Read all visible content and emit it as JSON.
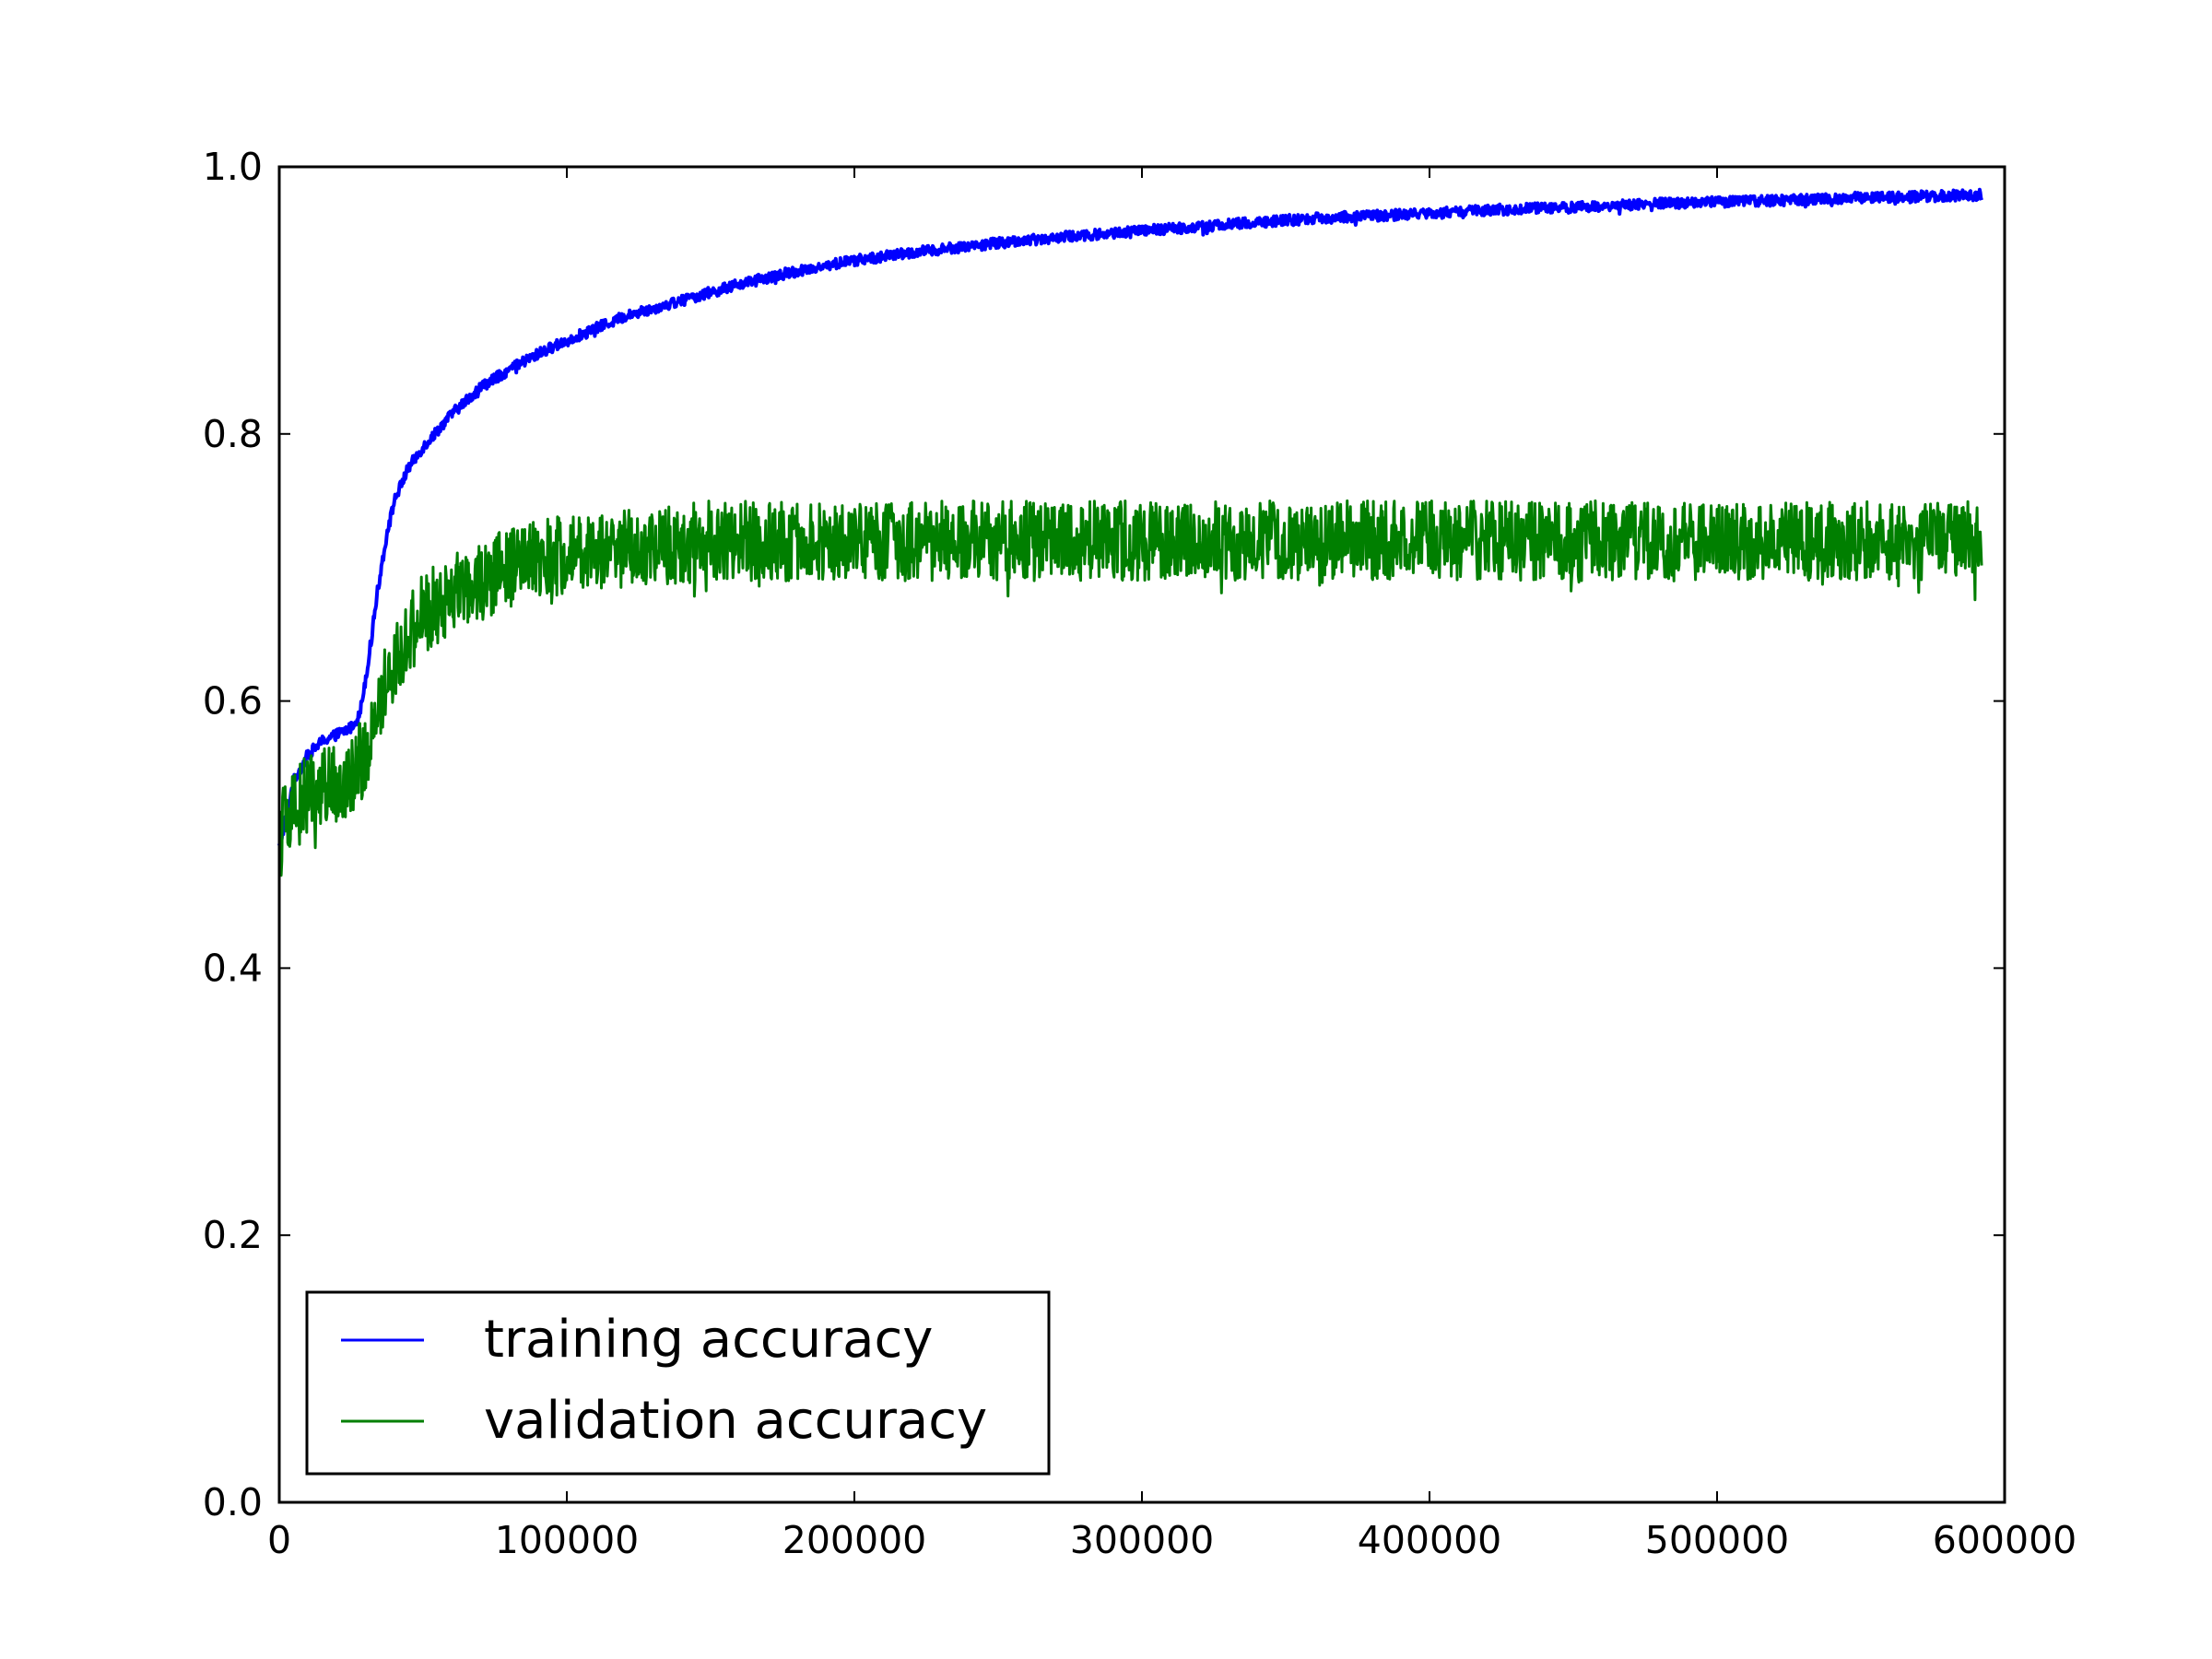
{
  "chart_data": {
    "type": "line",
    "title": "",
    "xlabel": "",
    "ylabel": "",
    "xlim": [
      0,
      600000
    ],
    "ylim": [
      0.0,
      1.0
    ],
    "x_ticks": [
      {
        "value": 0,
        "label": "0"
      },
      {
        "value": 100000,
        "label": "100000"
      },
      {
        "value": 200000,
        "label": "200000"
      },
      {
        "value": 300000,
        "label": "300000"
      },
      {
        "value": 400000,
        "label": "400000"
      },
      {
        "value": 500000,
        "label": "500000"
      },
      {
        "value": 600000,
        "label": "600000"
      }
    ],
    "y_ticks": [
      {
        "value": 0.0,
        "label": "0.0"
      },
      {
        "value": 0.2,
        "label": "0.2"
      },
      {
        "value": 0.4,
        "label": "0.4"
      },
      {
        "value": 0.6,
        "label": "0.6"
      },
      {
        "value": 0.8,
        "label": "0.8"
      },
      {
        "value": 1.0,
        "label": "1.0"
      }
    ],
    "grid": false,
    "legend_position": "lower-left",
    "series": [
      {
        "name": "training accuracy",
        "color": "#0000ff",
        "noise": 0.004,
        "x": [
          0,
          5000,
          10000,
          15000,
          20000,
          25000,
          28000,
          31000,
          34000,
          37000,
          40000,
          45000,
          50000,
          60000,
          70000,
          80000,
          90000,
          100000,
          120000,
          140000,
          160000,
          180000,
          200000,
          225000,
          250000,
          275000,
          300000,
          325000,
          350000,
          375000,
          400000,
          425000,
          450000,
          475000,
          500000,
          525000,
          550000,
          575000,
          592000
        ],
        "y": [
          0.49,
          0.54,
          0.56,
          0.57,
          0.575,
          0.58,
          0.59,
          0.63,
          0.68,
          0.72,
          0.75,
          0.775,
          0.79,
          0.815,
          0.835,
          0.848,
          0.86,
          0.87,
          0.888,
          0.9,
          0.912,
          0.922,
          0.93,
          0.937,
          0.943,
          0.948,
          0.952,
          0.956,
          0.96,
          0.963,
          0.965,
          0.968,
          0.97,
          0.972,
          0.974,
          0.975,
          0.977,
          0.978,
          0.979
        ]
      },
      {
        "name": "validation accuracy",
        "color": "#007f00",
        "noise": 0.03,
        "x": [
          0,
          5000,
          10000,
          15000,
          20000,
          25000,
          30000,
          35000,
          40000,
          45000,
          50000,
          60000,
          70000,
          80000,
          90000,
          100000,
          125000,
          150000,
          175000,
          200000,
          250000,
          300000,
          350000,
          400000,
          450000,
          500000,
          550000,
          592000
        ],
        "y": [
          0.5,
          0.52,
          0.53,
          0.535,
          0.54,
          0.545,
          0.56,
          0.6,
          0.63,
          0.65,
          0.665,
          0.68,
          0.69,
          0.7,
          0.705,
          0.71,
          0.715,
          0.72,
          0.72,
          0.72,
          0.72,
          0.72,
          0.72,
          0.72,
          0.72,
          0.72,
          0.72,
          0.72
        ]
      }
    ]
  }
}
